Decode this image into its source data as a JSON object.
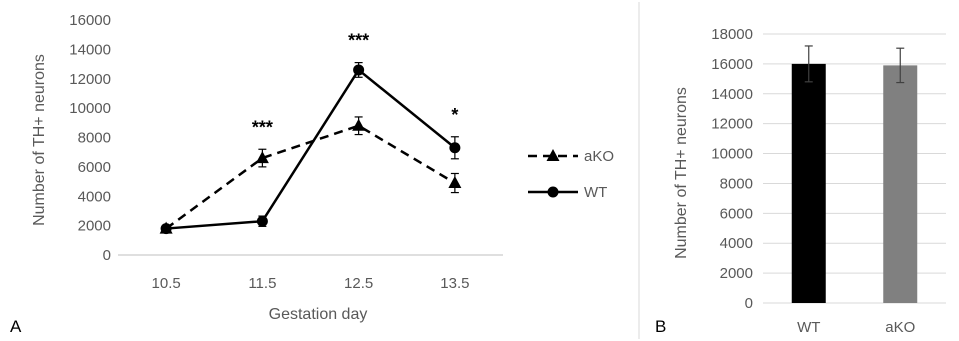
{
  "chart_data": [
    {
      "type": "line",
      "panel_label": "A",
      "xlabel": "Gestation day",
      "ylabel": "Number of TH+ neurons",
      "categories": [
        "10.5",
        "11.5",
        "12.5",
        "13.5"
      ],
      "ylim": [
        0,
        16000
      ],
      "yticks": [
        0,
        2000,
        4000,
        6000,
        8000,
        10000,
        12000,
        14000,
        16000
      ],
      "grid": false,
      "legend_position": "right",
      "series": [
        {
          "name": "aKO",
          "values": [
            1800,
            6600,
            8800,
            4900
          ],
          "errors": [
            200,
            600,
            600,
            650
          ],
          "marker": "triangle",
          "line": "dashed",
          "color": "#000000"
        },
        {
          "name": "WT",
          "values": [
            1800,
            2300,
            12600,
            7300
          ],
          "errors": [
            150,
            350,
            500,
            750
          ],
          "marker": "circle",
          "line": "solid",
          "color": "#000000"
        }
      ],
      "annotations": [
        {
          "category": "11.5",
          "text": "***"
        },
        {
          "category": "12.5",
          "text": "***"
        },
        {
          "category": "13.5",
          "text": "*"
        }
      ]
    },
    {
      "type": "bar",
      "panel_label": "B",
      "xlabel": "",
      "ylabel": "Number of TH+ neurons",
      "categories": [
        "WT",
        "aKO"
      ],
      "values": [
        16000,
        15900
      ],
      "errors": [
        1200,
        1150
      ],
      "colors": [
        "#000000",
        "#808080"
      ],
      "ylim": [
        0,
        18000
      ],
      "yticks": [
        0,
        2000,
        4000,
        6000,
        8000,
        10000,
        12000,
        14000,
        16000,
        18000
      ],
      "grid": true
    }
  ]
}
